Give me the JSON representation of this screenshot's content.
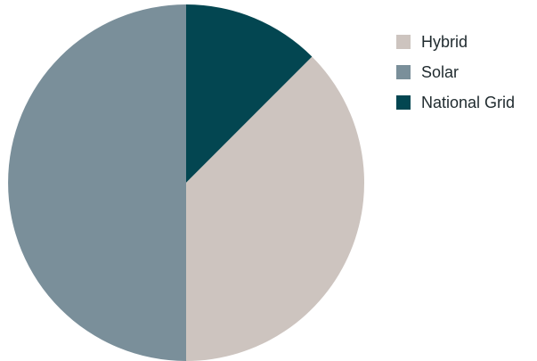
{
  "chart_data": {
    "type": "pie",
    "categories": [
      "Hybrid",
      "Solar",
      "National Grid"
    ],
    "values": [
      37.5,
      50,
      12.5
    ],
    "colors": [
      "#cdc4bf",
      "#7a8f9a",
      "#034651"
    ],
    "legend_position": "top-right",
    "start": "top-clockwise-after-national-grid",
    "grid": false
  }
}
